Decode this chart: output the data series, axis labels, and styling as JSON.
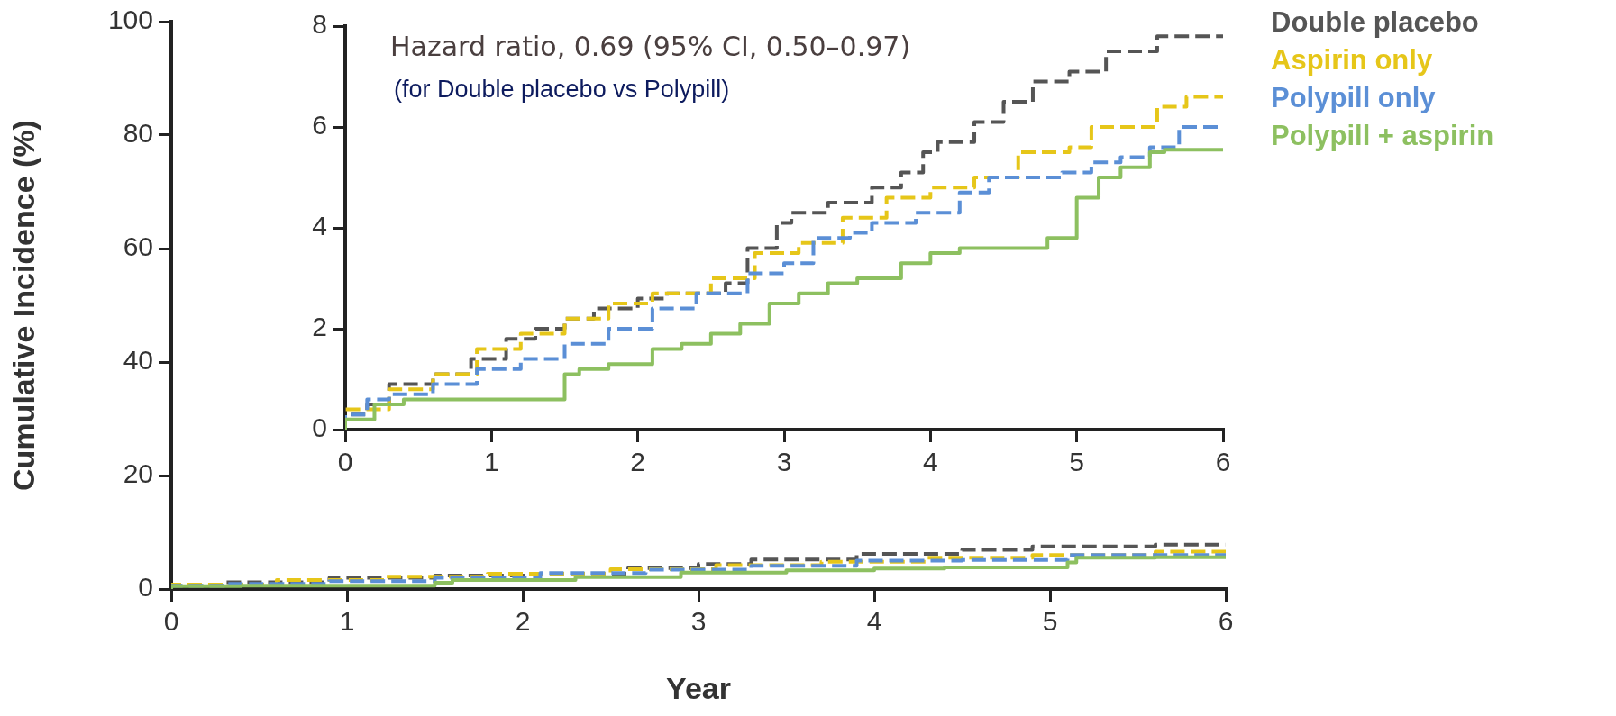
{
  "chart_data": [
    {
      "type": "step",
      "xlabel": "Year",
      "ylabel": "Cumulative Incidence (%)",
      "xlim": [
        0,
        6
      ],
      "xticks": [
        0,
        1,
        2,
        3,
        4,
        5,
        6
      ],
      "ylim": [
        0,
        100
      ],
      "yticks": [
        0,
        20,
        40,
        60,
        80,
        100
      ],
      "grid": false,
      "legend": false,
      "series": [
        {
          "color": "#555555",
          "line_style": "dashed",
          "x": [
            0,
            0.3,
            0.9,
            1.5,
            2.0,
            2.6,
            3.0,
            3.3,
            3.9,
            4.5,
            4.9,
            5.6,
            6.0
          ],
          "values": [
            0,
            0.5,
            1.2,
            2.0,
            2.4,
            2.7,
            3.7,
            4.4,
            5.2,
            6.2,
            6.9,
            7.5,
            7.8
          ]
        },
        {
          "color": "#e6c619",
          "line_style": "dashed",
          "x": [
            0,
            0.6,
            1.2,
            1.8,
            2.5,
            3.1,
            3.7,
            4.3,
            4.9,
            5.6,
            5.9,
            6.0
          ],
          "values": [
            0,
            0.8,
            1.6,
            2.2,
            2.7,
            3.5,
            4.2,
            4.8,
            5.5,
            6.0,
            6.6,
            6.6
          ]
        },
        {
          "color": "#5b8fd6",
          "line_style": "dashed",
          "x": [
            0,
            0.3,
            0.9,
            1.5,
            2.1,
            2.7,
            3.3,
            3.9,
            4.5,
            5.1,
            5.85,
            6.0
          ],
          "values": [
            0,
            0.6,
            0.9,
            1.4,
            2.0,
            2.8,
            3.4,
            4.1,
            5.0,
            5.1,
            6.0,
            6.0
          ]
        },
        {
          "color": "#8dc060",
          "line_style": "solid",
          "x": [
            0,
            0.4,
            1.5,
            1.6,
            2.3,
            2.9,
            3.5,
            4.0,
            4.4,
            5.1,
            5.15,
            5.6,
            6.0
          ],
          "values": [
            0,
            0.5,
            0.6,
            1.1,
            1.6,
            2.1,
            2.9,
            3.3,
            3.6,
            3.8,
            4.7,
            5.5,
            5.6
          ]
        }
      ]
    },
    {
      "type": "step",
      "xlim": [
        0,
        6
      ],
      "xticks": [
        0,
        1,
        2,
        3,
        4,
        5,
        6
      ],
      "ylim": [
        0,
        8
      ],
      "yticks": [
        0,
        2,
        4,
        6,
        8
      ],
      "grid": false,
      "legend": "right",
      "annotations": [
        "Hazard ratio, 0.69 (95% CI, 0.50–0.97)",
        "(for Double placebo vs Polypill)"
      ],
      "series": [
        {
          "name": "Double placebo",
          "color": "#555555",
          "line_style": "dashed",
          "x": [
            0,
            0.15,
            0.3,
            0.6,
            0.86,
            1.1,
            1.3,
            1.5,
            1.7,
            2.0,
            2.2,
            2.6,
            2.75,
            2.95,
            3.05,
            3.3,
            3.6,
            3.8,
            3.95,
            4.05,
            4.3,
            4.5,
            4.7,
            4.95,
            5.2,
            5.55,
            5.8,
            6.0
          ],
          "values": [
            0,
            0.3,
            0.5,
            0.9,
            1.1,
            1.4,
            1.8,
            2.0,
            2.2,
            2.4,
            2.6,
            2.7,
            2.9,
            3.6,
            4.1,
            4.3,
            4.5,
            4.8,
            5.1,
            5.5,
            5.7,
            6.1,
            6.5,
            6.9,
            7.1,
            7.5,
            7.8,
            7.8
          ]
        },
        {
          "name": "Aspirin only",
          "color": "#e6c619",
          "line_style": "dashed",
          "x": [
            0,
            0.3,
            0.6,
            0.9,
            1.2,
            1.5,
            1.8,
            2.1,
            2.5,
            2.8,
            3.1,
            3.4,
            3.7,
            4.0,
            4.3,
            4.6,
            4.95,
            5.1,
            5.55,
            5.75,
            5.85,
            6.0
          ],
          "values": [
            0,
            0.4,
            0.8,
            1.1,
            1.6,
            1.9,
            2.2,
            2.5,
            2.7,
            3.0,
            3.5,
            3.7,
            4.2,
            4.6,
            4.8,
            5.0,
            5.5,
            5.6,
            6.0,
            6.4,
            6.6,
            6.6
          ]
        },
        {
          "name": "Polypill only",
          "color": "#5b8fd6",
          "line_style": "dashed",
          "x": [
            0,
            0.15,
            0.3,
            0.6,
            0.9,
            1.2,
            1.5,
            1.8,
            2.1,
            2.4,
            2.75,
            3.0,
            3.2,
            3.45,
            3.6,
            3.9,
            4.2,
            4.4,
            4.6,
            4.9,
            5.1,
            5.3,
            5.5,
            5.7,
            5.8,
            6.0
          ],
          "values": [
            0,
            0.3,
            0.6,
            0.7,
            0.9,
            1.2,
            1.4,
            1.7,
            2.0,
            2.4,
            2.7,
            3.1,
            3.3,
            3.8,
            3.9,
            4.1,
            4.3,
            4.7,
            5.0,
            5.0,
            5.1,
            5.3,
            5.4,
            5.6,
            6.0,
            6.0
          ]
        },
        {
          "name": "Polypill + aspirin",
          "color": "#8dc060",
          "line_style": "solid",
          "x": [
            0,
            0.2,
            0.4,
            0.7,
            1.5,
            1.6,
            1.8,
            2.1,
            2.3,
            2.5,
            2.7,
            2.9,
            3.1,
            3.3,
            3.5,
            3.8,
            4.0,
            4.2,
            4.4,
            4.8,
            5.0,
            5.15,
            5.3,
            5.5,
            5.6,
            5.72,
            6.0
          ],
          "values": [
            0,
            0.2,
            0.5,
            0.6,
            0.6,
            1.1,
            1.2,
            1.3,
            1.6,
            1.7,
            1.9,
            2.1,
            2.5,
            2.7,
            2.9,
            3.0,
            3.3,
            3.5,
            3.6,
            3.6,
            3.8,
            4.6,
            5.0,
            5.2,
            5.5,
            5.55,
            5.55
          ]
        }
      ]
    }
  ]
}
